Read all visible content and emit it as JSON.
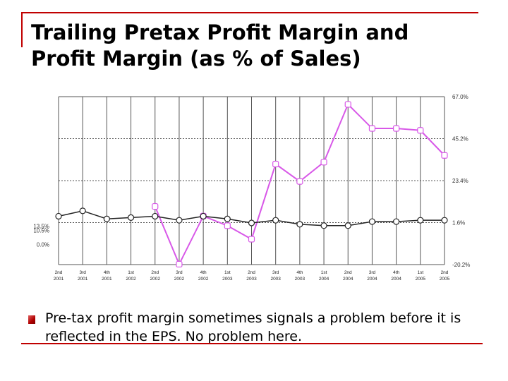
{
  "slide": {
    "title_line1": "Trailing Pretax Profit Margin and",
    "title_line2": "Profit Margin (as % of Sales)",
    "bullet": "Pre-tax profit margin sometimes signals a problem before it is reflected in the EPS.  No problem here."
  },
  "colors": {
    "rule": "#c00000",
    "pretax_series": "#d858e8",
    "profit_series": "#222222",
    "grid": "#555555"
  },
  "chart_data": {
    "type": "line",
    "categories": [
      [
        "2nd",
        "2001"
      ],
      [
        "3rd",
        "2001"
      ],
      [
        "4th",
        "2001"
      ],
      [
        "1st",
        "2002"
      ],
      [
        "2nd",
        "2002"
      ],
      [
        "3rd",
        "2002"
      ],
      [
        "4th",
        "2002"
      ],
      [
        "1st",
        "2003"
      ],
      [
        "2nd",
        "2003"
      ],
      [
        "3rd",
        "2003"
      ],
      [
        "4th",
        "2003"
      ],
      [
        "1st",
        "2004"
      ],
      [
        "2nd",
        "2004"
      ],
      [
        "3rd",
        "2004"
      ],
      [
        "4th",
        "2004"
      ],
      [
        "1st",
        "2005"
      ],
      [
        "2nd",
        "2005"
      ]
    ],
    "left_ticks": [
      "13.5%",
      "10.5%",
      "0.0%"
    ],
    "left_tick_values": [
      13.5,
      10.5,
      0.0
    ],
    "left_range": [
      -15,
      110
    ],
    "right_ticks": [
      "67.0%",
      "45.2%",
      "23.4%",
      "1.6%",
      "-20.2%"
    ],
    "right_tick_values": [
      67.0,
      45.2,
      23.4,
      1.6,
      -20.2
    ],
    "right_range": [
      -20.2,
      67.0
    ],
    "series": [
      {
        "axis": "right",
        "values": [
          null,
          null,
          null,
          null,
          10.0,
          -20.0,
          5.0,
          0.0,
          -7.0,
          32.0,
          23.0,
          33.0,
          63.0,
          50.5,
          50.5,
          49.5,
          36.5
        ]
      },
      {
        "axis": "left",
        "values": [
          21.0,
          25.0,
          19.0,
          20.0,
          21.0,
          18.0,
          21.0,
          19.0,
          16.0,
          18.0,
          15.0,
          14.0,
          14.0,
          17.0,
          17.0,
          18.0,
          18.0
        ]
      }
    ],
    "grid": true
  }
}
